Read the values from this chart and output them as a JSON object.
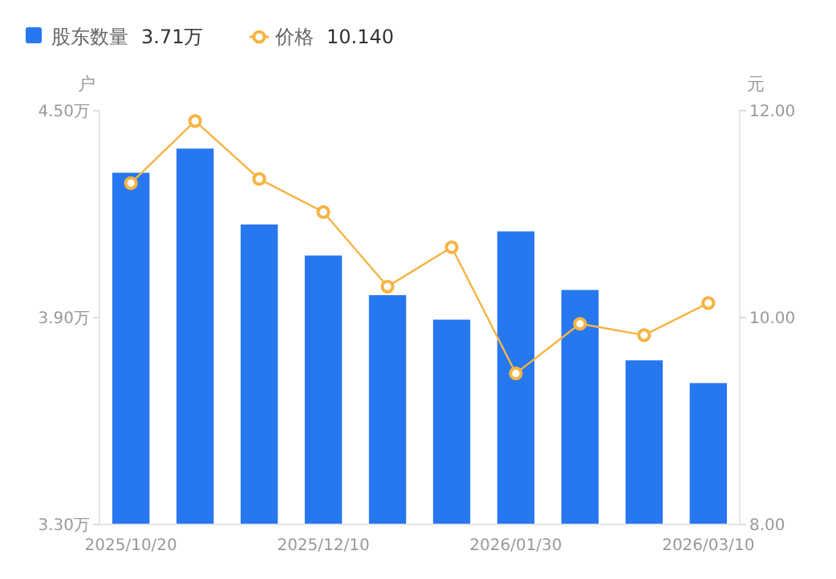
{
  "chart_data": {
    "type": "bar",
    "categories": [
      "2025/10/20",
      null,
      null,
      "2025/12/10",
      null,
      null,
      "2026/01/30",
      null,
      null,
      "2026/03/10"
    ],
    "series": [
      {
        "name": "股东数量",
        "color": "#2777f0",
        "values": [
          4.32,
          4.39,
          4.17,
          4.08,
          3.965,
          3.894,
          4.15,
          3.98,
          3.776,
          3.71
        ]
      },
      {
        "name": "价格",
        "type": "line",
        "axis": "y2",
        "color": "#f5b443",
        "marker": "circle",
        "values": [
          11.3,
          11.9,
          11.34,
          11.02,
          10.3,
          10.68,
          9.46,
          9.94,
          9.83,
          10.14
        ]
      }
    ],
    "annotations": [
      "3.71万",
      "10.140"
    ],
    "ylabel": "户",
    "y2label": "元",
    "ylim": [
      3.3,
      4.5
    ],
    "yticks": [
      {
        "value": 3.3,
        "label": "3.30万"
      },
      {
        "value": 3.9,
        "label": "3.90万"
      },
      {
        "value": 4.5,
        "label": "4.50万"
      }
    ],
    "y2lim": [
      8,
      12
    ],
    "y2ticks": [
      {
        "value": 8,
        "label": "8.00"
      },
      {
        "value": 10,
        "label": "10.00"
      },
      {
        "value": 12,
        "label": "12.00"
      }
    ],
    "legend": "top left"
  }
}
